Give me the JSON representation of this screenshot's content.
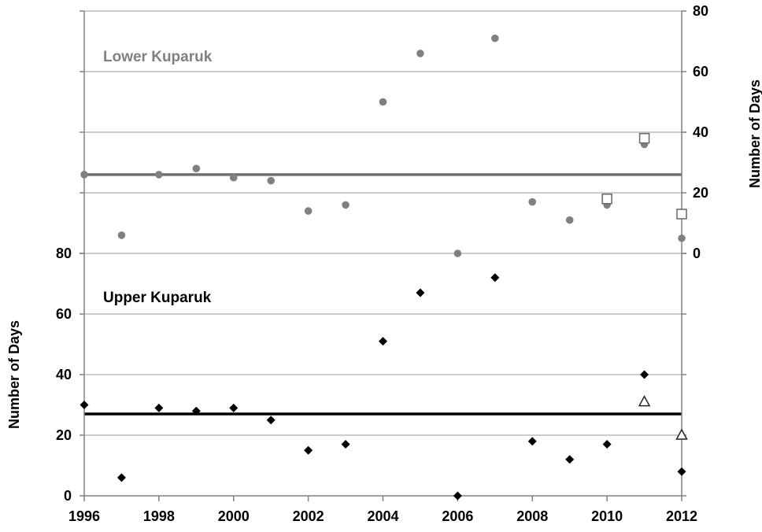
{
  "chart_data": [
    {
      "type": "scatter",
      "panel": "upper",
      "label": "Lower Kuparuk",
      "axis_side": "right",
      "ylabel": "Number of Days",
      "ylim": [
        0,
        80
      ],
      "yticks": [
        "0",
        "20",
        "40",
        "60",
        "80"
      ],
      "mean_line": 26,
      "colors": {
        "points": "#808080",
        "mean": "#6e6e6e",
        "label": "#808080"
      },
      "series": [
        {
          "marker": "circle",
          "x": [
            1996,
            1997,
            1998,
            1999,
            2000,
            2001,
            2002,
            2003,
            2004,
            2005,
            2006,
            2007,
            2008,
            2009,
            2010,
            2011,
            2012
          ],
          "values": [
            26,
            6,
            26,
            28,
            25,
            24,
            14,
            16,
            50,
            66,
            0,
            71,
            17,
            11,
            16,
            36,
            5
          ]
        },
        {
          "marker": "open-square",
          "x": [
            2010,
            2011,
            2012
          ],
          "values": [
            18,
            38,
            13
          ]
        }
      ]
    },
    {
      "type": "scatter",
      "panel": "lower",
      "label": "Upper Kuparuk",
      "axis_side": "left",
      "ylabel": "Number of Days",
      "ylim": [
        0,
        80
      ],
      "yticks": [
        "0",
        "20",
        "40",
        "60",
        "80"
      ],
      "mean_line": 27,
      "colors": {
        "points": "#000000",
        "mean": "#000000",
        "label": "#000000"
      },
      "series": [
        {
          "marker": "diamond",
          "x": [
            1996,
            1997,
            1998,
            1999,
            2000,
            2001,
            2002,
            2003,
            2004,
            2005,
            2006,
            2007,
            2008,
            2009,
            2010,
            2011,
            2012
          ],
          "values": [
            30,
            6,
            29,
            28,
            29,
            25,
            15,
            17,
            51,
            67,
            0,
            72,
            18,
            12,
            17,
            40,
            8
          ]
        },
        {
          "marker": "open-triangle",
          "x": [
            2011,
            2012
          ],
          "values": [
            31,
            20
          ]
        }
      ]
    }
  ],
  "x_axis": {
    "ticks": [
      "1996",
      "1998",
      "2000",
      "2002",
      "2004",
      "2006",
      "2008",
      "2010",
      "2012"
    ],
    "xlim": [
      1996,
      2012
    ]
  },
  "grid": true
}
